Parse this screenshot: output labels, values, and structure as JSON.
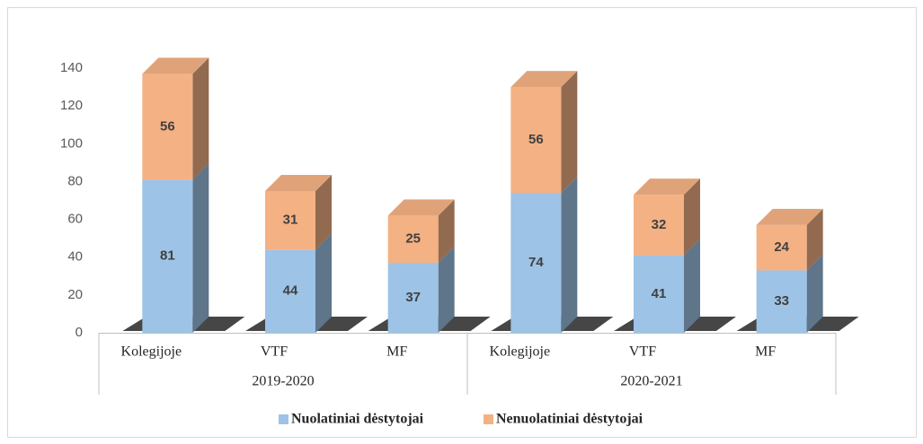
{
  "chart_data": {
    "type": "bar3d_stacked",
    "categories": [
      "Kolegijoje",
      "VTF",
      "MF",
      "Kolegijoje",
      "VTF",
      "MF"
    ],
    "groups": [
      "2019-2020",
      "2020-2021"
    ],
    "series": [
      {
        "name": "Nuolatiniai dėstytojai",
        "color": "#9dc3e6",
        "values": [
          81,
          44,
          37,
          74,
          41,
          33
        ]
      },
      {
        "name": "Nenuolatiniai dėstytojai",
        "color": "#f4b183",
        "values": [
          56,
          31,
          25,
          56,
          32,
          24
        ]
      }
    ],
    "ylim": [
      0,
      140
    ],
    "yticks": [
      0,
      20,
      40,
      60,
      80,
      100,
      120,
      140
    ],
    "grid": false,
    "legend": "bottom"
  }
}
